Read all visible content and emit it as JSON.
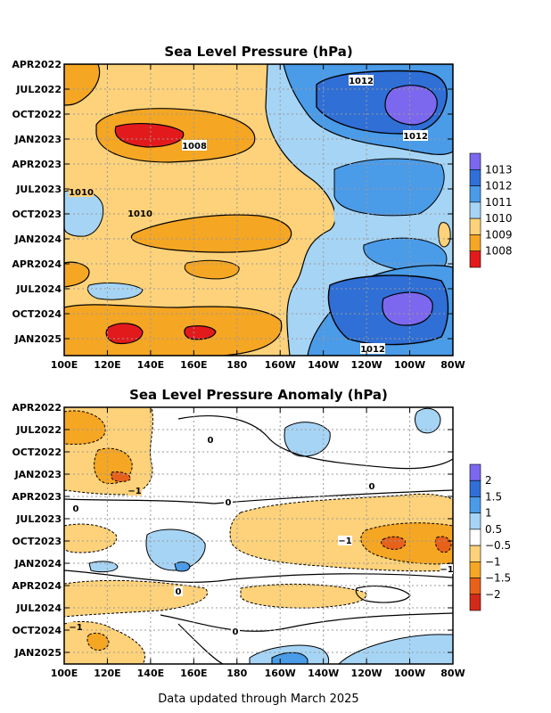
{
  "chart_data": [
    {
      "type": "heatmap",
      "title": "Sea Level Pressure (hPa)",
      "x_ticks": [
        "100E",
        "120E",
        "140E",
        "160E",
        "180",
        "160W",
        "140W",
        "120W",
        "100W",
        "80W"
      ],
      "y_ticks": [
        "APR2022",
        "JUL2022",
        "OCT2022",
        "JAN2023",
        "APR2023",
        "JUL2023",
        "OCT2023",
        "JAN2024",
        "APR2024",
        "JUL2024",
        "OCT2024",
        "JAN2025"
      ],
      "colorbar": {
        "labels": [
          "1008",
          "1009",
          "1010",
          "1011",
          "1012",
          "1013"
        ],
        "colors": [
          "#e31a1c",
          "#f5a623",
          "#fdd27a",
          "#a6d4f5",
          "#4a9be8",
          "#2f6fd6",
          "#7b68ee"
        ]
      },
      "contour_labels": [
        "1012",
        "1012",
        "1008",
        "1010",
        "1010",
        "1012"
      ],
      "grid": true,
      "features": [
        {
          "region": "western Pacific",
          "level": "1008-1010",
          "note": "low pressure belt 110E-170E"
        },
        {
          "region": "eastern Pacific",
          "level": "1011-1013",
          "note": "high pressure 150W-80W"
        },
        {
          "region": "120W-100W",
          "level": ">1013",
          "note": "maxima around OCT2022 and OCT2024"
        }
      ]
    },
    {
      "type": "heatmap",
      "title": "Sea Level Pressure Anomaly (hPa)",
      "x_ticks": [
        "100E",
        "120E",
        "140E",
        "160E",
        "180",
        "160W",
        "140W",
        "120W",
        "100W",
        "80W"
      ],
      "y_ticks": [
        "APR2022",
        "JUL2022",
        "OCT2022",
        "JAN2023",
        "APR2023",
        "JUL2023",
        "OCT2023",
        "JAN2024",
        "APR2024",
        "JUL2024",
        "OCT2024",
        "JAN2025"
      ],
      "colorbar": {
        "labels": [
          "2",
          "1.5",
          "1",
          "0.5",
          "−0.5",
          "−1",
          "−1.5",
          "−2"
        ],
        "colors": [
          "#7b68ee",
          "#2f6fd6",
          "#4a9be8",
          "#a6d4f5",
          "#ffffff",
          "#fdd27a",
          "#f5a623",
          "#e8611a",
          "#d42a1a"
        ]
      },
      "contour_labels": [
        "0",
        "−1",
        "0",
        "0",
        "0",
        "−1",
        "−1",
        "0",
        "0",
        "−1"
      ],
      "grid": true,
      "features": [
        {
          "region": "100E-140E",
          "level": "-0.5 to -1.5",
          "note": "negative anomalies, APR2022-APR2023 and OCT2024-JAN2025"
        },
        {
          "region": "160W-80W",
          "level": "-0.5 to -1.5",
          "note": "negative anomalies JUL2023-JAN2024"
        },
        {
          "region": "140E-160E",
          "level": "0.5 to 1",
          "note": "positive anomaly near JAN2024"
        }
      ]
    }
  ],
  "footer": "Data updated through March 2025"
}
